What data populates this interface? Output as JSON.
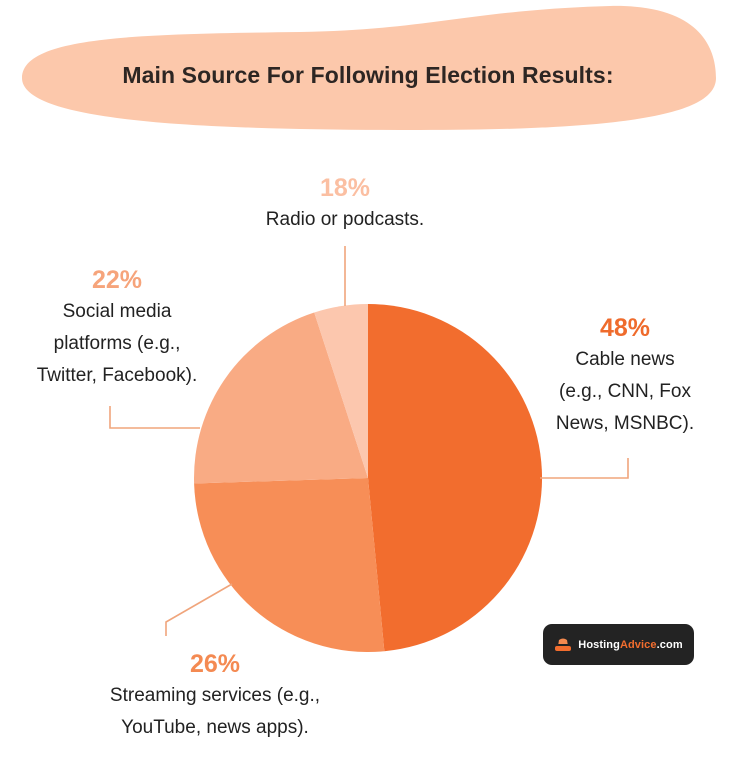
{
  "chart_data": {
    "type": "pie",
    "title": "Main Source For Following Election Results:",
    "slices": [
      {
        "pct_label": "48%",
        "value": 48,
        "desc": "Cable news (e.g., CNN, Fox News, MSNBC).",
        "desc_lines": [
          "Cable news",
          "(e.g., CNN, Fox",
          "News, MSNBC)."
        ],
        "color": "#f26d2e",
        "label_color": "#ef6b2c"
      },
      {
        "pct_label": "26%",
        "value": 26,
        "desc": "Streaming services (e.g., YouTube, news apps).",
        "desc_lines": [
          "Streaming services (e.g.,",
          "YouTube, news apps)."
        ],
        "color": "#f78e57",
        "label_color": "#f48a52"
      },
      {
        "pct_label": "22%",
        "value": 22,
        "desc": "Social media platforms (e.g., Twitter, Facebook).",
        "desc_lines": [
          "Social media",
          "platforms (e.g.,",
          "Twitter, Facebook)."
        ],
        "color": "#f9ab84",
        "label_color": "#f6a47b"
      },
      {
        "pct_label": "18%",
        "value": 18,
        "desc": "Radio or podcasts.",
        "desc_lines": [
          "Radio or podcasts."
        ],
        "color": "#fcc7ae",
        "label_color": "#fbbfa2"
      }
    ]
  },
  "badge": {
    "prefix": "Hosting",
    "accent": "Advice",
    "suffix": ".com"
  },
  "colors": {
    "title_blob": "#fcc8ab",
    "leader_line": "#f0a57c"
  }
}
